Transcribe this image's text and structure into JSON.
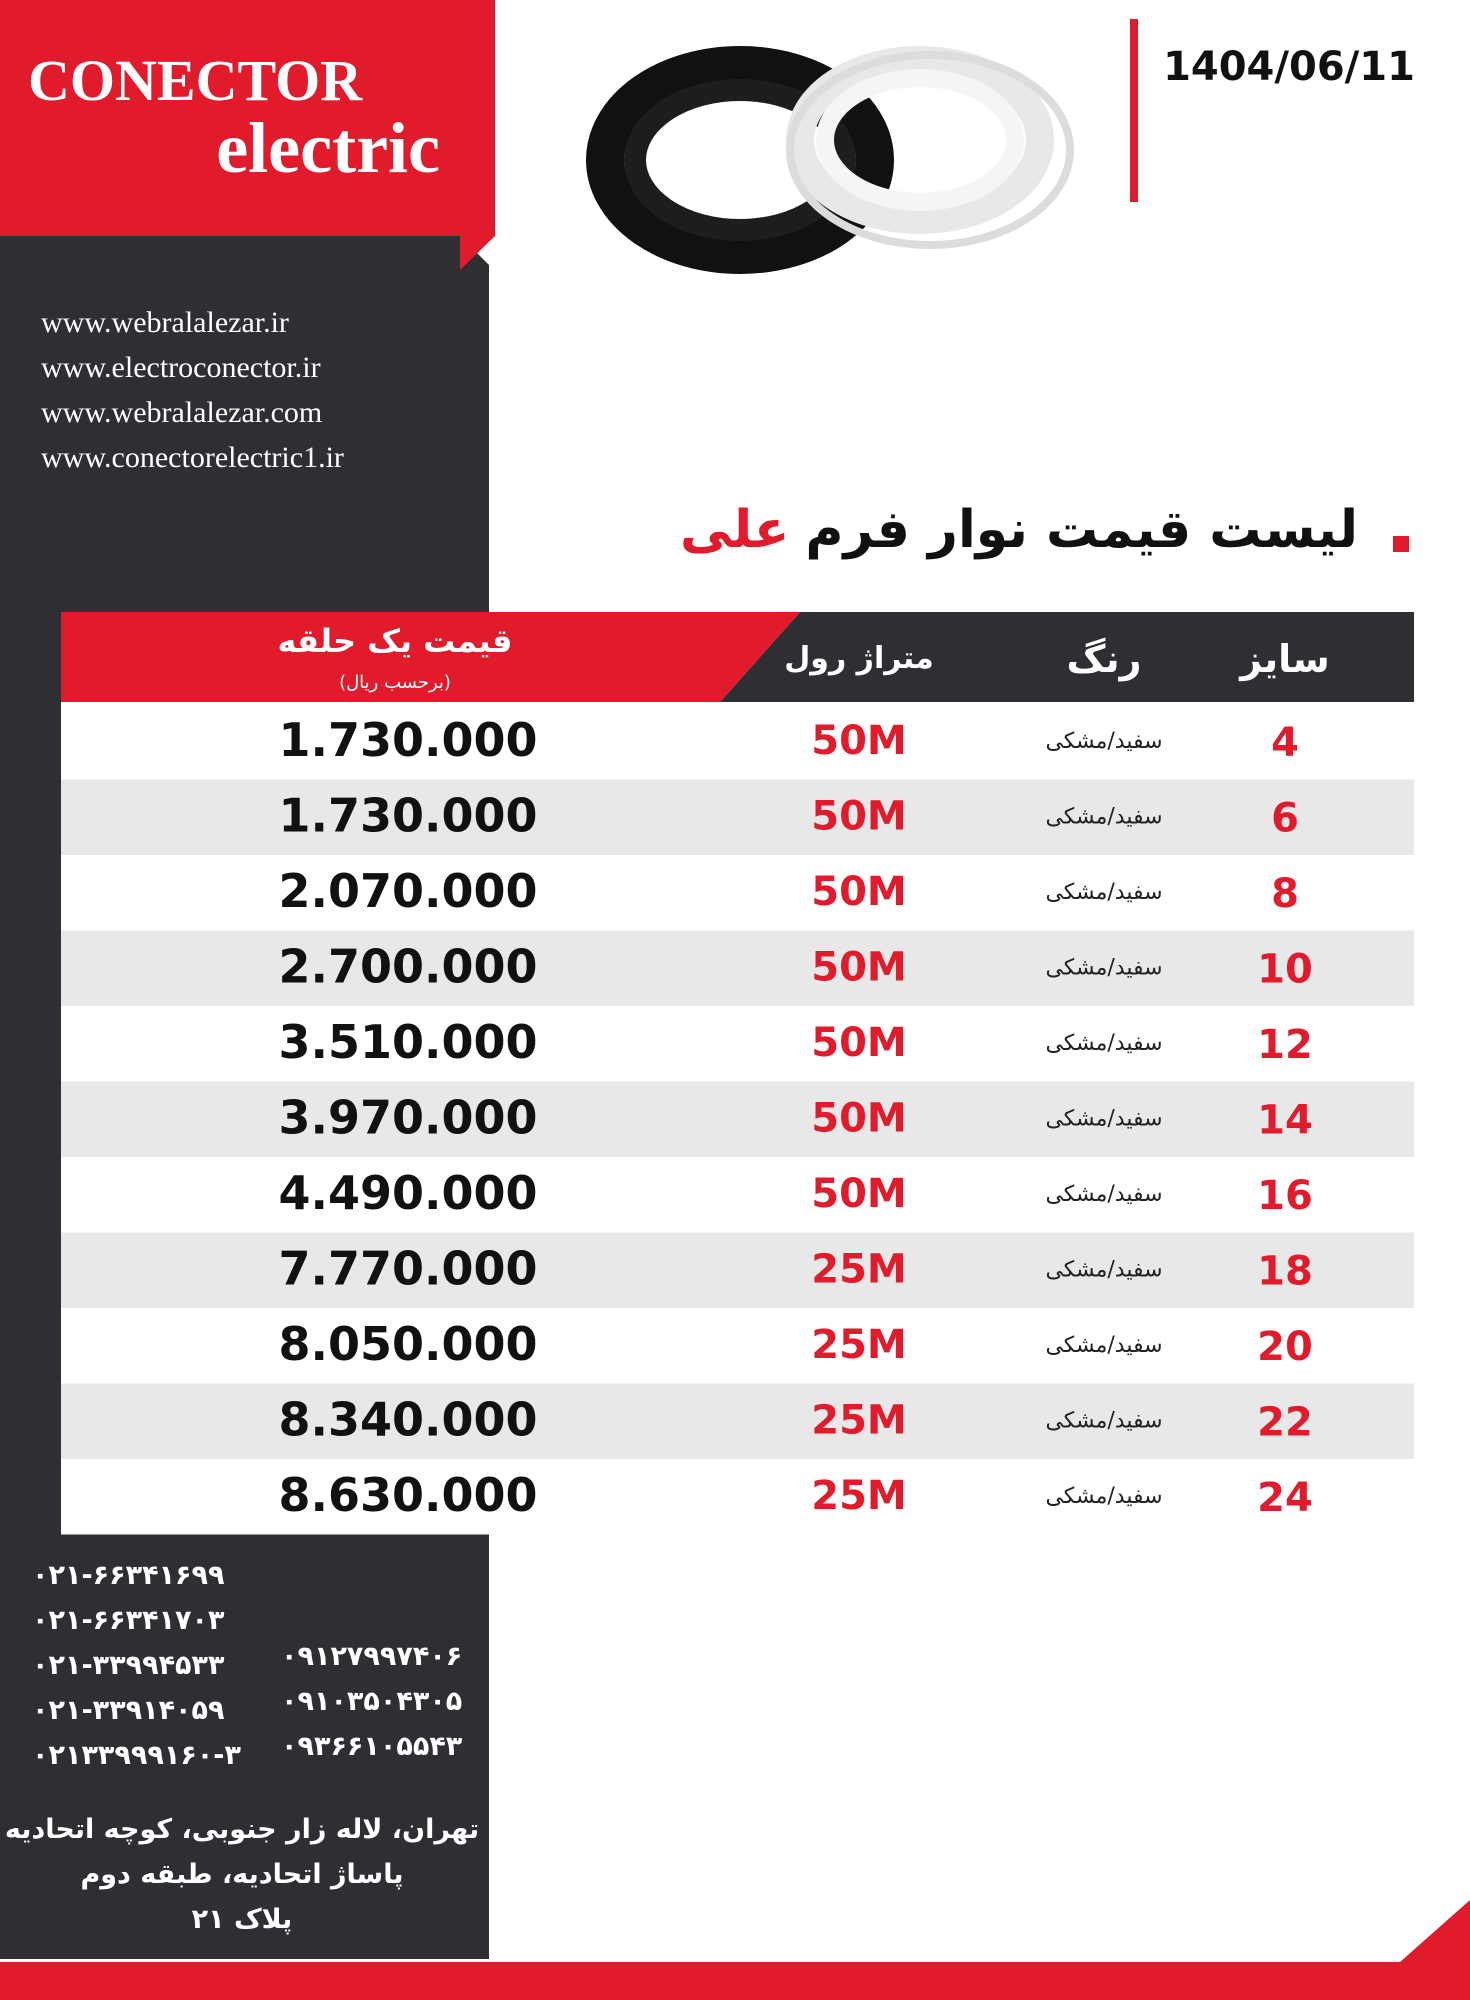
{
  "logo": {
    "line1": "CONECTOR",
    "line2": "electric"
  },
  "date": "1404/06/11",
  "websites": [
    "www.webralalezar.ir",
    "www.electroconector.ir",
    "www.webralalezar.com",
    "www.conectorelectric1.ir"
  ],
  "title": {
    "text": "لیست قیمت نوار فرم",
    "highlight": "علی"
  },
  "table": {
    "header": {
      "size": "سایز",
      "color": "رنگ",
      "length": "متراژ رول",
      "price": "قیمت یک حلقه",
      "price_unit": "(برحسب ریال)"
    },
    "rows": [
      [
        4,
        "سفید/مشکی",
        "50M",
        "1.730.000"
      ],
      [
        6,
        "سفید/مشکی",
        "50M",
        "1.730.000"
      ],
      [
        8,
        "سفید/مشکی",
        "50M",
        "2.070.000"
      ],
      [
        10,
        "سفید/مشکی",
        "50M",
        "2.700.000"
      ],
      [
        12,
        "سفید/مشکی",
        "50M",
        "3.510.000"
      ],
      [
        14,
        "سفید/مشکی",
        "50M",
        "3.970.000"
      ],
      [
        16,
        "سفید/مشکی",
        "50M",
        "4.490.000"
      ],
      [
        18,
        "سفید/مشکی",
        "25M",
        "7.770.000"
      ],
      [
        20,
        "سفید/مشکی",
        "25M",
        "8.050.000"
      ],
      [
        22,
        "سفید/مشکی",
        "25M",
        "8.340.000"
      ],
      [
        24,
        "سفید/مشکی",
        "25M",
        "8.630.000"
      ]
    ]
  },
  "phones": {
    "landline": [
      "۰۲۱-۶۶۳۴۱۶۹۹",
      "۰۲۱-۶۶۳۴۱۷۰۳",
      "۰۲۱-۳۳۹۹۴۵۳۳",
      "۰۲۱-۳۳۹۱۴۰۵۹",
      "۰۲۱۳۳۹۹۹۱۶۰-۳"
    ],
    "mobile": [
      "۰۹۱۲۷۹۹۷۴۰۶",
      "۰۹۱۰۳۵۰۴۳۰۵",
      "۰۹۳۶۶۱۰۵۵۴۳"
    ]
  },
  "address": [
    "تهران، لاله زار جنوبی، کوچه اتحادیه",
    "پاساژ اتحادیه، طبقه دوم",
    "پلاک ۲۱"
  ]
}
